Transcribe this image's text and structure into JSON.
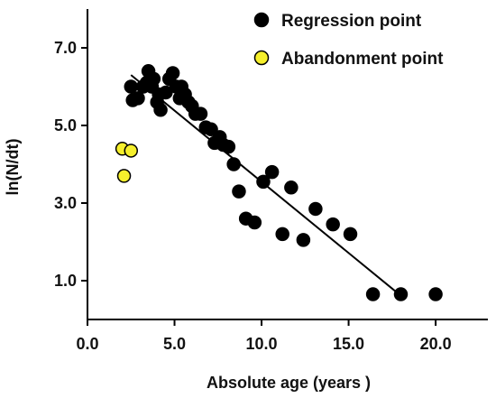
{
  "chart_data": {
    "type": "scatter",
    "title": "",
    "xlabel": "Absolute age (years )",
    "ylabel": "ln(N/dt)",
    "xlim": [
      0,
      23
    ],
    "ylim": [
      0,
      8
    ],
    "x_ticks": [
      0,
      5,
      10,
      15,
      20
    ],
    "x_tick_labels": [
      "0.0",
      "5.0",
      "10.0",
      "15.0",
      "20.0"
    ],
    "y_ticks": [
      1,
      3,
      5,
      7
    ],
    "y_tick_labels": [
      "1.0",
      "3.0",
      "5.0",
      "7.0"
    ],
    "grid": false,
    "legend_position": "top-right",
    "series": [
      {
        "name": "Regression point",
        "color": "#000000",
        "points": [
          [
            2.5,
            6.0
          ],
          [
            2.6,
            5.65
          ],
          [
            2.9,
            5.7
          ],
          [
            3.2,
            6.0
          ],
          [
            3.4,
            6.1
          ],
          [
            3.5,
            6.4
          ],
          [
            3.7,
            6.0
          ],
          [
            3.8,
            6.2
          ],
          [
            4.0,
            5.6
          ],
          [
            4.1,
            5.8
          ],
          [
            4.2,
            5.4
          ],
          [
            4.5,
            5.85
          ],
          [
            4.7,
            6.2
          ],
          [
            4.9,
            6.35
          ],
          [
            5.1,
            6.0
          ],
          [
            5.3,
            5.7
          ],
          [
            5.4,
            6.0
          ],
          [
            5.6,
            5.8
          ],
          [
            5.8,
            5.6
          ],
          [
            6.0,
            5.5
          ],
          [
            6.2,
            5.3
          ],
          [
            6.5,
            5.3
          ],
          [
            6.8,
            4.95
          ],
          [
            7.1,
            4.9
          ],
          [
            7.3,
            4.55
          ],
          [
            7.6,
            4.7
          ],
          [
            7.8,
            4.5
          ],
          [
            8.1,
            4.45
          ],
          [
            8.4,
            4.0
          ],
          [
            8.7,
            3.3
          ],
          [
            9.1,
            2.6
          ],
          [
            9.6,
            2.5
          ],
          [
            10.1,
            3.55
          ],
          [
            10.6,
            3.8
          ],
          [
            11.2,
            2.2
          ],
          [
            11.7,
            3.4
          ],
          [
            12.4,
            2.05
          ],
          [
            13.1,
            2.85
          ],
          [
            14.1,
            2.45
          ],
          [
            15.1,
            2.2
          ],
          [
            16.4,
            0.65
          ],
          [
            18.0,
            0.65
          ],
          [
            20.0,
            0.65
          ]
        ]
      },
      {
        "name": "Abandonment point",
        "color": "#f5ef2c",
        "points": [
          [
            2.0,
            4.4
          ],
          [
            2.5,
            4.35
          ],
          [
            2.1,
            3.7
          ]
        ]
      }
    ],
    "regression_line": {
      "from": [
        2.5,
        6.3
      ],
      "to": [
        17.9,
        0.65
      ]
    }
  }
}
